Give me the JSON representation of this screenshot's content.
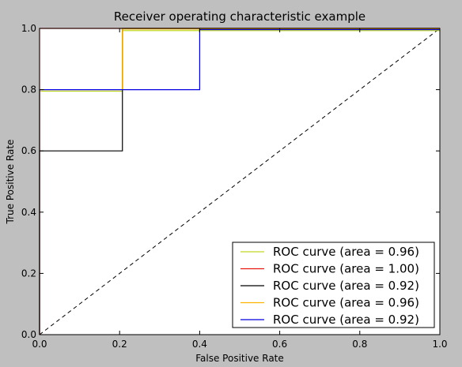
{
  "chart_data": {
    "type": "line",
    "title": "Receiver operating characteristic example",
    "xlabel": "False Positive Rate",
    "ylabel": "True Positive Rate",
    "xlim": [
      0.0,
      1.0
    ],
    "ylim": [
      0.0,
      1.0
    ],
    "xticks": [
      "0.0",
      "0.2",
      "0.4",
      "0.6",
      "0.8",
      "1.0"
    ],
    "yticks": [
      "0.0",
      "0.2",
      "0.4",
      "0.6",
      "0.8",
      "1.0"
    ],
    "grid": false,
    "legend_position": "lower-right",
    "diagonal": {
      "x": [
        0,
        1
      ],
      "y": [
        0,
        1
      ],
      "style": "dashed",
      "color": "#000000"
    },
    "series": [
      {
        "name": "ROC curve (area = 0.96)",
        "color": "#bfd820",
        "x": [
          0.0,
          0.0,
          0.207,
          0.207,
          1.0
        ],
        "y": [
          0.0,
          0.795,
          0.795,
          0.993,
          0.993
        ]
      },
      {
        "name": "ROC curve (area = 1.00)",
        "color": "#e8190e",
        "x": [
          0.0,
          0.0,
          1.0
        ],
        "y": [
          0.0,
          1.0,
          1.0
        ]
      },
      {
        "name": "ROC curve (area = 0.92)",
        "color": "#000000",
        "x": [
          0.0,
          0.0,
          0.207,
          0.207,
          1.0
        ],
        "y": [
          0.0,
          0.6,
          0.6,
          1.0,
          1.0
        ]
      },
      {
        "name": "ROC curve (area = 0.96)",
        "color": "#ffb300",
        "x": [
          0.0,
          0.0,
          0.207,
          0.207,
          1.0
        ],
        "y": [
          0.0,
          0.8,
          0.8,
          0.998,
          0.998
        ]
      },
      {
        "name": "ROC curve (area = 0.92)",
        "color": "#0000e0",
        "x": [
          0.0,
          0.0,
          0.4,
          0.4,
          1.0
        ],
        "y": [
          0.0,
          0.8,
          0.8,
          0.996,
          0.996
        ]
      }
    ]
  }
}
